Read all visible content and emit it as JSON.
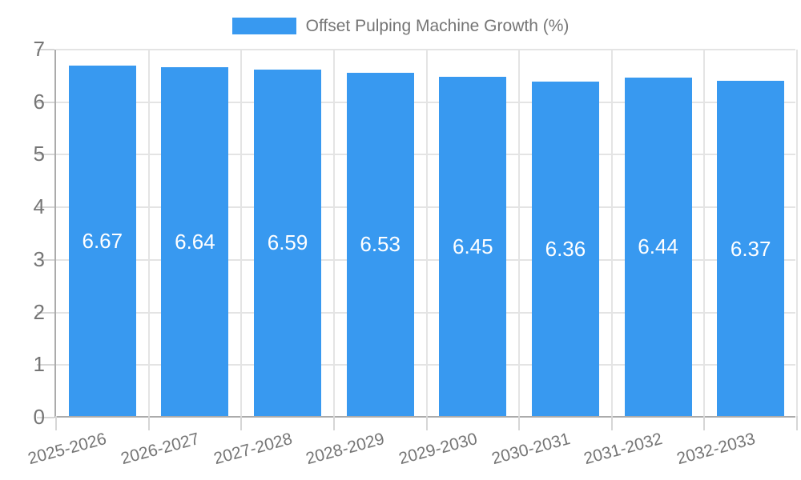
{
  "legend": {
    "label": "Offset Pulping Machine Growth (%)"
  },
  "colors": {
    "bar": "#3899f0",
    "text": "#757575",
    "grid": "#e4e4e4",
    "axis": "#ababab",
    "tick": "#d6d6d6",
    "value_label": "#ffffff",
    "background": "#ffffff"
  },
  "chart_data": {
    "type": "bar",
    "categories": [
      "2025-2026",
      "2026-2027",
      "2027-2028",
      "2028-2029",
      "2029-2030",
      "2030-2031",
      "2031-2032",
      "2032-2033"
    ],
    "series": [
      {
        "name": "Offset Pulping Machine Growth (%)",
        "values": [
          6.67,
          6.64,
          6.59,
          6.53,
          6.45,
          6.36,
          6.44,
          6.37
        ]
      }
    ],
    "value_labels": [
      "6.67",
      "6.64",
      "6.59",
      "6.53",
      "6.45",
      "6.36",
      "6.44",
      "6.37"
    ],
    "title": "Offset Pulping Machine Growth (%)",
    "xlabel": "",
    "ylabel": "",
    "ylim": [
      0,
      7
    ],
    "yticks": [
      0,
      1,
      2,
      3,
      4,
      5,
      6,
      7
    ],
    "grid": true,
    "legend_position": "top",
    "x_tick_rotation_deg": -15
  }
}
